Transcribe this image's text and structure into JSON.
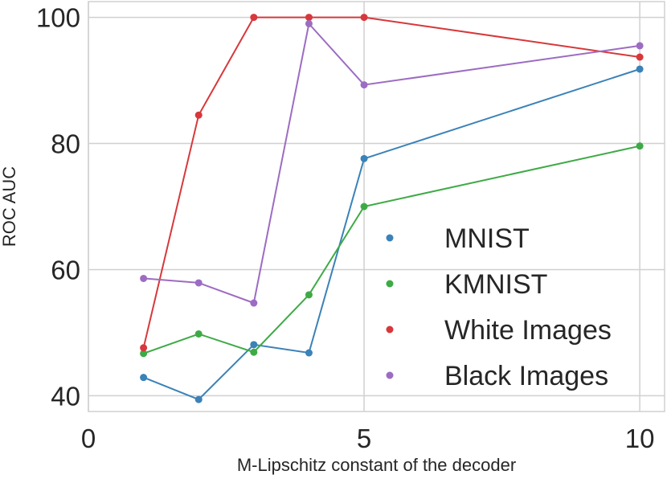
{
  "chart_data": {
    "type": "line",
    "title": "",
    "xlabel": "M-Lipschitz constant of the decoder",
    "ylabel": "ROC AUC",
    "xlim": [
      0,
      10.45
    ],
    "ylim": [
      37.5,
      102.5
    ],
    "xticks": [
      0,
      5,
      10
    ],
    "yticks": [
      40,
      60,
      80,
      100
    ],
    "grid": true,
    "legend_position": "lower-right",
    "x": [
      1,
      2,
      3,
      4,
      5,
      10
    ],
    "series": [
      {
        "name": "MNIST",
        "color": "#3a82b8",
        "values": [
          42.9,
          39.4,
          48.1,
          46.8,
          77.6,
          91.8
        ]
      },
      {
        "name": "KMNIST",
        "color": "#3eaa46",
        "values": [
          46.7,
          49.8,
          46.9,
          56.0,
          70.0,
          79.6
        ]
      },
      {
        "name": "White Images",
        "color": "#d7383b",
        "values": [
          47.6,
          84.5,
          100.0,
          100.0,
          100.0,
          93.7
        ]
      },
      {
        "name": "Black Images",
        "color": "#9c6cc2",
        "values": [
          58.6,
          57.9,
          54.7,
          99.0,
          89.3,
          95.5
        ]
      }
    ]
  }
}
